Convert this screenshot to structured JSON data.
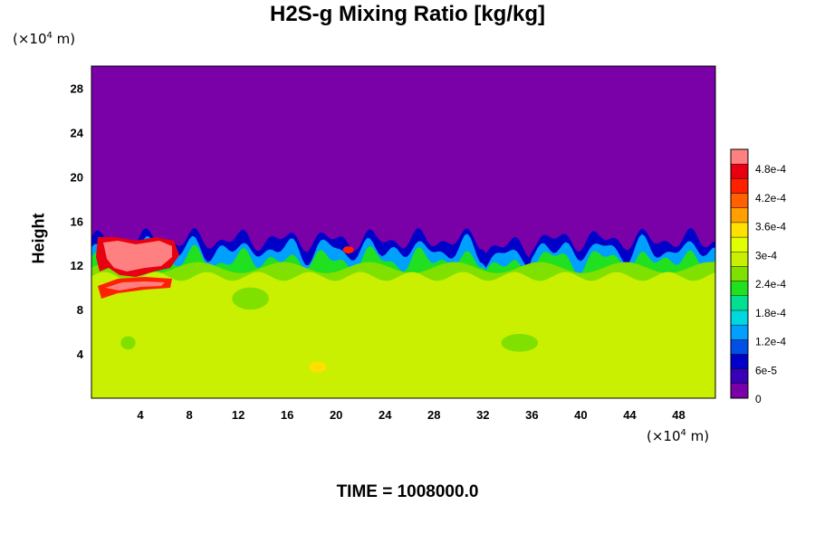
{
  "title": "H2S-g Mixing Ratio [kg/kg]",
  "y_unit_label": "(×10",
  "x_unit_label": "(×10",
  "unit_exponent": "4",
  "unit_suffix": " m)",
  "time_label": "TIME = 1008000.0",
  "chart_data": {
    "type": "heatmap",
    "title": "H2S-g Mixing Ratio [kg/kg]",
    "ylabel": "Height",
    "xlabel": "",
    "x_unit": "(×10^4 m)",
    "y_unit": "(×10^4 m)",
    "xlim": [
      0,
      51
    ],
    "ylim": [
      0,
      30
    ],
    "xticks": [
      4,
      8,
      12,
      16,
      20,
      24,
      28,
      32,
      36,
      40,
      44,
      48
    ],
    "xtick_labels": [
      "4",
      "8",
      "12",
      "16",
      "20",
      "24",
      "28",
      "32",
      "36",
      "40",
      "44",
      "48"
    ],
    "yticks": [
      4,
      8,
      12,
      16,
      20,
      24,
      28
    ],
    "ytick_labels": [
      "4",
      "8",
      "12",
      "16",
      "20",
      "24",
      "28"
    ],
    "colorbar": {
      "ticks": [
        0,
        6e-05,
        0.00012,
        0.00018,
        0.00024,
        0.0003,
        0.00036,
        0.00042,
        0.00048
      ],
      "tick_labels": [
        "0",
        "6e-5",
        "1.2e-4",
        "1.8e-4",
        "2.4e-4",
        "3e-4",
        "3.6e-4",
        "4.2e-4",
        "4.8e-4"
      ],
      "max": 0.00052,
      "colors": [
        "#7a00a8",
        "#3a00b8",
        "#0000c8",
        "#0050e6",
        "#00a0ff",
        "#00d8e0",
        "#00e090",
        "#20e020",
        "#80e000",
        "#c8f000",
        "#e0ff00",
        "#ffe000",
        "#ffa000",
        "#ff6000",
        "#ff2000",
        "#e80010",
        "#ff8080"
      ]
    },
    "description_regions": [
      {
        "region": "upper atmosphere",
        "y_range": [
          14.5,
          30
        ],
        "value": 0
      },
      {
        "region": "mixing layer (wavy interface)",
        "y_range": [
          10.5,
          15
        ],
        "value_range": [
          0,
          0.00036
        ]
      },
      {
        "region": "lower layer",
        "y_range": [
          0,
          11
        ],
        "value": 0.00036
      },
      {
        "region": "high-concentration plume near x≈2-8",
        "y_range": [
          9,
          14
        ],
        "value": 0.0005
      }
    ]
  }
}
